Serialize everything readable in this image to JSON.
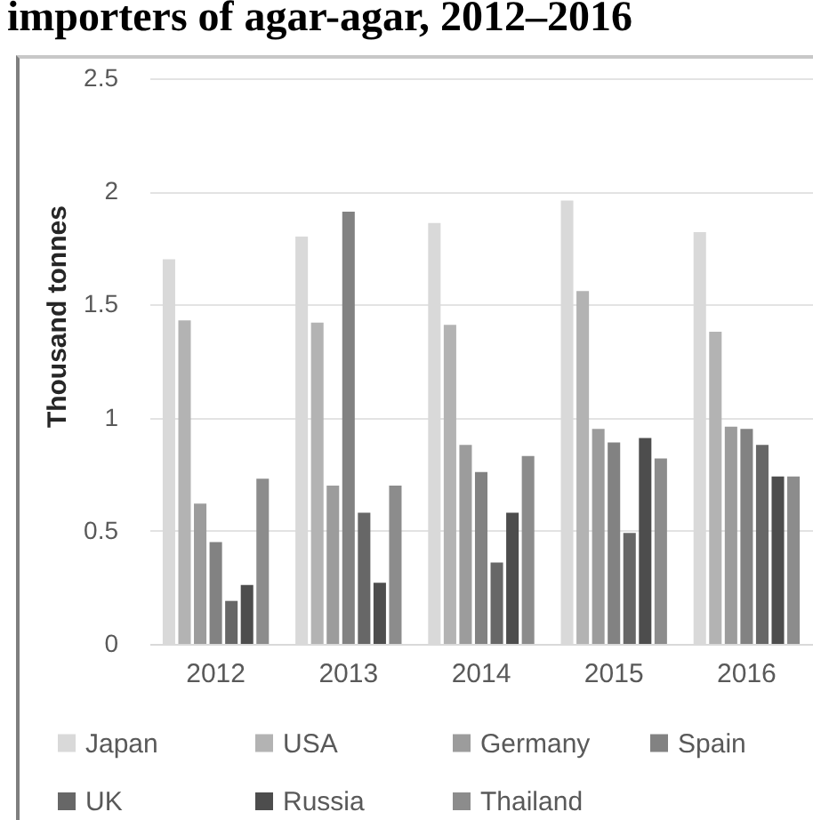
{
  "chart_data": {
    "type": "bar",
    "title": "importers of agar-agar, 2012–2016",
    "ylabel": "Thousand tonnes",
    "categories": [
      "2012",
      "2013",
      "2014",
      "2015",
      "2016"
    ],
    "series": [
      {
        "name": "Japan",
        "color": "#d9d9d9",
        "values": [
          1.7,
          1.8,
          1.86,
          1.96,
          1.82
        ]
      },
      {
        "name": "USA",
        "color": "#b3b3b3",
        "values": [
          1.43,
          1.42,
          1.41,
          1.56,
          1.38
        ]
      },
      {
        "name": "Germany",
        "color": "#9c9c9c",
        "values": [
          0.62,
          0.7,
          0.88,
          0.95,
          0.96
        ]
      },
      {
        "name": "Spain",
        "color": "#828282",
        "values": [
          0.45,
          1.91,
          0.76,
          0.89,
          0.95
        ]
      },
      {
        "name": "UK",
        "color": "#676767",
        "values": [
          0.19,
          0.58,
          0.36,
          0.49,
          0.88
        ]
      },
      {
        "name": "Russia",
        "color": "#4d4d4d",
        "values": [
          0.26,
          0.27,
          0.58,
          0.91,
          0.74
        ]
      },
      {
        "name": "Thailand",
        "color": "#8c8c8c",
        "values": [
          0.73,
          0.7,
          0.83,
          0.82,
          0.74
        ]
      }
    ],
    "ylim": [
      0,
      2.5
    ],
    "yticks": [
      0,
      0.5,
      1,
      1.5,
      2,
      2.5
    ],
    "grid": "y",
    "legend": "bottom"
  }
}
